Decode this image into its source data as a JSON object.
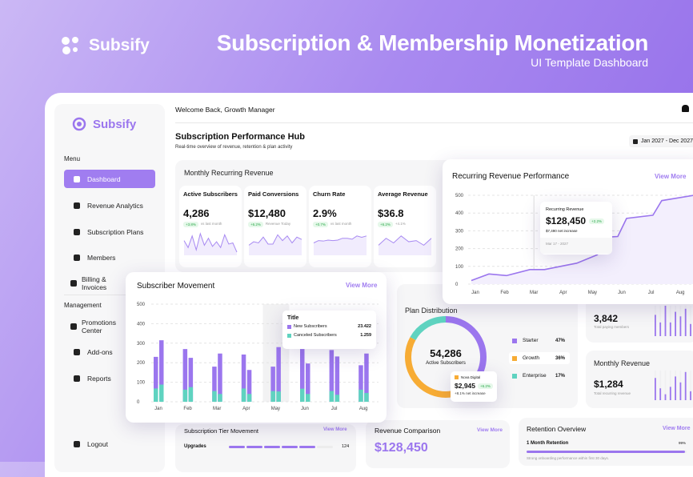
{
  "hero": {
    "brand": "Subsify",
    "title": "Subscription & Membership Monetization",
    "subtitle": "UI Template Dashboard"
  },
  "sidebar": {
    "brand": "Subsify",
    "menu_label": "Menu",
    "management_label": "Management",
    "menu": [
      {
        "label": "Dashboard",
        "icon": "home-icon",
        "active": true
      },
      {
        "label": "Revenue Analytics",
        "icon": "chart-icon"
      },
      {
        "label": "Subscription Plans",
        "icon": "document-icon"
      },
      {
        "label": "Members",
        "icon": "users-icon"
      },
      {
        "label": "Billing & Invoices",
        "icon": "wallet-icon"
      }
    ],
    "management": [
      {
        "label": "Promotions Center",
        "icon": "promo-icon"
      },
      {
        "label": "Add-ons",
        "icon": "box-icon"
      },
      {
        "label": "Reports",
        "icon": "report-icon"
      }
    ],
    "logout": "Logout"
  },
  "header": {
    "welcome": "Welcome Back, Growth Manager",
    "title": "Subscription Performance Hub",
    "subtitle": "Real-time overview of revenue, retention & plan activity",
    "date_range": "Jan 2027 - Dec 2027"
  },
  "mrr": {
    "title": "Monthly Recurring Revenue",
    "cards": [
      {
        "title": "Active Subscribers",
        "value": "4,286",
        "badge": "+3.8%",
        "note": "vs last month",
        "spark": [
          60,
          30,
          80,
          20,
          90,
          40,
          70,
          35,
          55,
          30,
          85,
          45,
          50,
          10
        ]
      },
      {
        "title": "Paid Conversions",
        "value": "$12,480",
        "badge": "+6.2%",
        "note": "Revenue Today",
        "spark": [
          40,
          55,
          50,
          75,
          45,
          45,
          85,
          60,
          80,
          50,
          75,
          65
        ]
      },
      {
        "title": "Churn Rate",
        "value": "2.9%",
        "badge": "+0.7%",
        "note": "vs last month",
        "spark": [
          50,
          60,
          58,
          62,
          60,
          62,
          70,
          70,
          66,
          80,
          74,
          80
        ]
      },
      {
        "title": "Average Revenue",
        "value": "$36.8",
        "badge": "+6.2%",
        "note": "+4.1%",
        "spark": [
          40,
          70,
          50,
          80,
          55,
          60,
          40,
          70
        ]
      }
    ]
  },
  "revenue_perf": {
    "title": "Recurring Revenue Performance",
    "view_more": "View More",
    "tooltip": {
      "label": "Recurring Revenue",
      "value": "$128,450",
      "badge": "+2.2%",
      "note": "$7,490 net increase",
      "date": "Mar 17 - 2027"
    }
  },
  "subscriber_movement": {
    "title": "Subscriber Movement",
    "view_more": "View More",
    "tooltip": {
      "title": "Title",
      "rows": [
        {
          "label": "New Subscribers",
          "value": "23.422"
        },
        {
          "label": "Canceled Subscribers",
          "value": "1.259"
        }
      ]
    }
  },
  "plan_distribution": {
    "title": "Plan Distribution",
    "center_value": "54,286",
    "center_label": "Active Subscribers",
    "legend": [
      {
        "label": "Starter",
        "pct": "47%",
        "value": 47,
        "color": "#9b76ee"
      },
      {
        "label": "Growth",
        "pct": "36%",
        "value": 36,
        "color": "#f7ac35"
      },
      {
        "label": "Enterprise",
        "pct": "17%",
        "value": 17,
        "color": "#5fd3c0"
      }
    ],
    "tooltip": {
      "label": "Nova Digital",
      "value": "$2,945",
      "badge": "+6.2%",
      "note": "+8.1% net increase"
    }
  },
  "paying": {
    "value": "3,842",
    "label": "Total paying members",
    "bars": [
      70,
      45,
      100,
      45,
      80,
      65,
      90,
      40
    ]
  },
  "monthly_revenue": {
    "title": "Monthly Revenue",
    "value": "$1,284",
    "label": "Total recurring revenue",
    "bars": [
      75,
      40,
      20,
      45,
      80,
      60,
      95,
      30
    ]
  },
  "tier": {
    "title": "Subscription Tier Movement",
    "view_more": "View More",
    "rows": [
      {
        "label": "Upgrades",
        "value": "124",
        "filled": 5,
        "segments": 6
      }
    ]
  },
  "revenue_comparison": {
    "title": "Revenue Comparison",
    "view_more": "View More",
    "value": "$128,450"
  },
  "retention": {
    "title": "Retention Overview",
    "view_more": "View More",
    "rows": [
      {
        "label": "1 Month Retention",
        "pct": "99%",
        "value": 99,
        "note": "Strong onboarding performance within first 30 days."
      }
    ]
  },
  "chart_data": [
    {
      "type": "line",
      "title": "Recurring Revenue Performance",
      "categories": [
        "Jan",
        "Feb",
        "Mar",
        "Apr",
        "May",
        "Jun",
        "Jul",
        "Aug"
      ],
      "ylim": [
        0,
        500
      ],
      "yticks": [
        0,
        100,
        200,
        300,
        400,
        500
      ],
      "points": [
        [
          0,
          20
        ],
        [
          0.6,
          57
        ],
        [
          1.2,
          48
        ],
        [
          2,
          82
        ],
        [
          2.5,
          82
        ],
        [
          3.2,
          105
        ],
        [
          3.6,
          118
        ],
        [
          4.3,
          165
        ],
        [
          4.7,
          265
        ],
        [
          5,
          268
        ],
        [
          5.3,
          370
        ],
        [
          6.2,
          388
        ],
        [
          6.5,
          470
        ],
        [
          7.6,
          500
        ]
      ]
    },
    {
      "type": "bar",
      "title": "Subscriber Movement",
      "categories": [
        "Jan",
        "Feb",
        "Mar",
        "Apr",
        "May",
        "Jun",
        "Jul",
        "Aug"
      ],
      "ylim": [
        0,
        500
      ],
      "yticks": [
        0,
        100,
        200,
        300,
        400,
        500
      ],
      "series": [
        {
          "name": "New Subscribers",
          "color": "#9b76ee",
          "values": [
            [
              230,
              315
            ],
            [
              270,
              225
            ],
            [
              180,
              247
            ],
            [
              242,
              163
            ],
            [
              180,
              280
            ],
            [
              270,
              196
            ],
            [
              265,
              232
            ],
            [
              187,
              247
            ]
          ]
        },
        {
          "name": "Canceled Subscribers",
          "color": "#5fd3c0",
          "values": [
            [
              68,
              88
            ],
            [
              62,
              75
            ],
            [
              55,
              40
            ],
            [
              68,
              40
            ],
            [
              55,
              53
            ],
            [
              67,
              40
            ],
            [
              55,
              36
            ],
            [
              62,
              45
            ]
          ]
        }
      ],
      "highlight": "May"
    }
  ]
}
